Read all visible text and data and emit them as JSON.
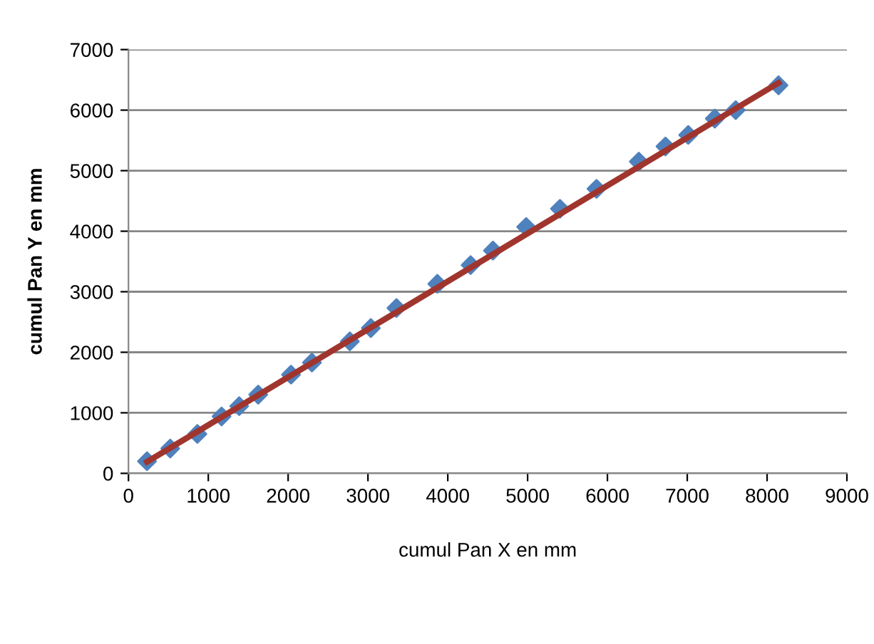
{
  "chart_data": {
    "type": "scatter",
    "xlabel": "cumul Pan X en mm",
    "ylabel": "cumul Pan Y en mm",
    "series": [
      {
        "color": "#4f81bd",
        "marker": "diamond",
        "x": [
          232,
          523,
          863,
          1166,
          1387,
          1625,
          2036,
          2298,
          2773,
          3036,
          3357,
          3869,
          4286,
          4566,
          4982,
          5405,
          5863,
          6393,
          6727,
          7012,
          7345,
          7607,
          8143
        ],
        "values": [
          200,
          410,
          650,
          940,
          1110,
          1300,
          1630,
          1830,
          2180,
          2400,
          2730,
          3130,
          3440,
          3680,
          4070,
          4370,
          4700,
          5150,
          5400,
          5590,
          5860,
          6000,
          6410
        ]
      },
      {
        "type": "line",
        "color": "#a0352e",
        "marker": "none",
        "x": [
          232,
          8143
        ],
        "values": [
          190,
          6450
        ]
      }
    ],
    "xlim": [
      0,
      9000
    ],
    "xticks": [
      0,
      1000,
      2000,
      3000,
      4000,
      5000,
      6000,
      7000,
      8000,
      9000
    ],
    "ylim": [
      0,
      7000
    ],
    "yticks": [
      0,
      1000,
      2000,
      3000,
      4000,
      5000,
      6000,
      7000
    ],
    "grid": "y",
    "legend": false
  }
}
